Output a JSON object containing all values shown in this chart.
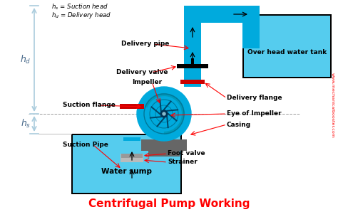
{
  "title": "Centrifugal Pump Working",
  "title_color": "#FF0000",
  "title_fontsize": 11,
  "bg_color": "#FFFFFF",
  "pipe_color": "#00AADD",
  "water_color": "#55CCEE",
  "dark_gray": "#666666",
  "red": "#FF0000",
  "dark_red": "#CC0000",
  "black": "#000000",
  "watermark": "www.mechanicalbooster.com",
  "dim_color": "#AACCDD",
  "label_color": "#111111",
  "labels": {
    "delivery_pipe": "Delivery pipe",
    "delivery_valve": "Delivery valve",
    "impeller": "Impeller",
    "suction_flange": "Suction flange",
    "delivery_flange": "Delivery flange",
    "eye_of_impeller": "Eye of Impeller",
    "casing": "Casing",
    "suction_pipe": "Suction Pipe",
    "foot_valve": "Foot valve",
    "strainer": "Strainer",
    "water_sump": "Water sump",
    "overhead_tank": "Over head water tank"
  }
}
